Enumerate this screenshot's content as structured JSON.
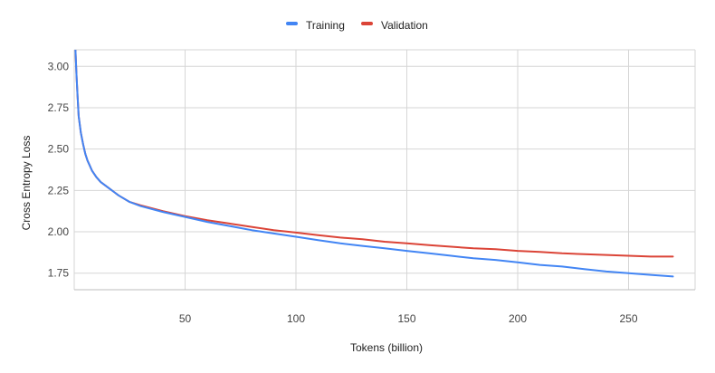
{
  "chart_data": {
    "type": "line",
    "xlabel": "Tokens (billion)",
    "ylabel": "Cross Entropy Loss",
    "xlim": [
      0,
      280
    ],
    "ylim": [
      1.65,
      3.1
    ],
    "xticks": [
      50,
      100,
      150,
      200,
      250
    ],
    "yticks": [
      1.75,
      2.0,
      2.25,
      2.5,
      2.75,
      3.0
    ],
    "xtick_labels": [
      "50",
      "100",
      "150",
      "200",
      "250"
    ],
    "ytick_labels": [
      "1.75",
      "2.00",
      "2.25",
      "2.50",
      "2.75",
      "3.00"
    ],
    "grid": true,
    "legend_position": "top-center",
    "series": [
      {
        "name": "Training",
        "color": "#4285f4",
        "x": [
          0.5,
          1,
          1.5,
          2,
          3,
          4,
          5,
          6,
          7,
          8,
          10,
          12,
          15,
          20,
          25,
          30,
          40,
          50,
          60,
          70,
          80,
          90,
          100,
          110,
          120,
          130,
          140,
          150,
          160,
          170,
          180,
          190,
          200,
          210,
          220,
          230,
          240,
          250,
          260,
          270
        ],
        "y": [
          3.12,
          2.95,
          2.82,
          2.7,
          2.6,
          2.53,
          2.47,
          2.43,
          2.4,
          2.37,
          2.33,
          2.3,
          2.27,
          2.22,
          2.18,
          2.155,
          2.12,
          2.09,
          2.06,
          2.035,
          2.01,
          1.99,
          1.97,
          1.95,
          1.93,
          1.915,
          1.9,
          1.885,
          1.87,
          1.855,
          1.84,
          1.83,
          1.815,
          1.8,
          1.79,
          1.775,
          1.76,
          1.75,
          1.74,
          1.73
        ]
      },
      {
        "name": "Validation",
        "color": "#db4437",
        "x": [
          0.5,
          1,
          1.5,
          2,
          3,
          4,
          5,
          6,
          7,
          8,
          10,
          12,
          15,
          20,
          25,
          30,
          40,
          50,
          60,
          70,
          80,
          90,
          100,
          110,
          120,
          130,
          140,
          150,
          160,
          170,
          180,
          190,
          200,
          210,
          220,
          230,
          240,
          250,
          260,
          270
        ],
        "y": [
          3.12,
          2.95,
          2.82,
          2.7,
          2.6,
          2.53,
          2.47,
          2.43,
          2.4,
          2.37,
          2.33,
          2.3,
          2.27,
          2.22,
          2.18,
          2.16,
          2.125,
          2.095,
          2.07,
          2.05,
          2.03,
          2.01,
          1.995,
          1.98,
          1.965,
          1.955,
          1.94,
          1.93,
          1.92,
          1.91,
          1.9,
          1.895,
          1.885,
          1.878,
          1.87,
          1.865,
          1.86,
          1.855,
          1.85,
          1.85
        ]
      }
    ]
  }
}
